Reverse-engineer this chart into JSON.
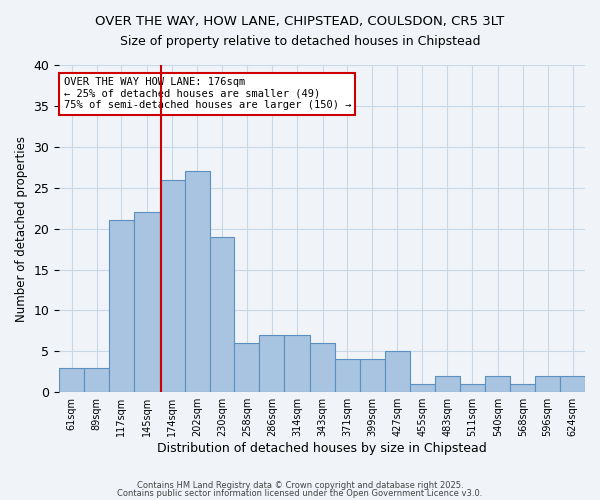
{
  "title_line1": "OVER THE WAY, HOW LANE, CHIPSTEAD, COULSDON, CR5 3LT",
  "title_line2": "Size of property relative to detached houses in Chipstead",
  "xlabel": "Distribution of detached houses by size in Chipstead",
  "ylabel": "Number of detached properties",
  "bar_labels": [
    "61sqm",
    "89sqm",
    "117sqm",
    "145sqm",
    "174sqm",
    "202sqm",
    "230sqm",
    "258sqm",
    "286sqm",
    "314sqm",
    "343sqm",
    "371sqm",
    "399sqm",
    "427sqm",
    "455sqm",
    "483sqm",
    "511sqm",
    "540sqm",
    "568sqm",
    "596sqm",
    "624sqm"
  ],
  "bar_values": [
    3,
    3,
    21,
    22,
    26,
    27,
    19,
    6,
    7,
    7,
    6,
    4,
    4,
    5,
    1,
    2,
    1,
    2,
    1,
    2,
    2
  ],
  "bin_edges": [
    61,
    89,
    117,
    145,
    174,
    202,
    230,
    258,
    286,
    314,
    343,
    371,
    399,
    427,
    455,
    483,
    511,
    540,
    568,
    596,
    624,
    652
  ],
  "bar_color": "#a8c4e0",
  "bar_edge_color": "#5a8fc0",
  "vline_x": 176,
  "vline_color": "#cc0000",
  "annotation_text": "OVER THE WAY HOW LANE: 176sqm\n← 25% of detached houses are smaller (49)\n75% of semi-detached houses are larger (150) →",
  "annotation_box_color": "#ffffff",
  "annotation_box_edge": "#cc0000",
  "ylim": [
    0,
    40
  ],
  "yticks": [
    0,
    5,
    10,
    15,
    20,
    25,
    30,
    35,
    40
  ],
  "grid_color": "#c8d8e8",
  "background_color": "#f0f4f8",
  "footer_line1": "Contains HM Land Registry data © Crown copyright and database right 2025.",
  "footer_line2": "Contains public sector information licensed under the Open Government Licence v3.0."
}
